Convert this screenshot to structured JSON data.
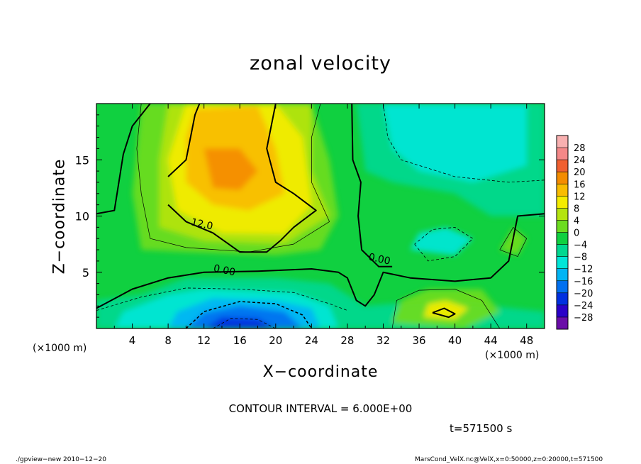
{
  "chart_data": {
    "type": "heatmap",
    "title": "zonal velocity",
    "xlabel": "X−coordinate",
    "ylabel": "Z−coordinate",
    "x_unit_left": "(×1000 m)",
    "x_unit_right": "(×1000 m)",
    "xlim": [
      0,
      50
    ],
    "ylim": [
      0,
      20
    ],
    "x_ticks": [
      4,
      8,
      12,
      16,
      20,
      24,
      28,
      32,
      36,
      40,
      44,
      48
    ],
    "y_ticks": [
      5,
      10,
      15
    ],
    "contour_interval_text": "CONTOUR INTERVAL = 6.000E+00",
    "time_text": "t=571500 s",
    "contour_labels": [
      {
        "text": "12.0",
        "x": 10.5,
        "y": 9.2
      },
      {
        "text": "0.00",
        "x": 13.0,
        "y": 5.1
      },
      {
        "text": "0.00",
        "x": 30.3,
        "y": 6.1
      }
    ],
    "colorbar": {
      "levels": [
        -28,
        -24,
        -20,
        -16,
        -12,
        -8,
        -4,
        0,
        4,
        8,
        12,
        16,
        20,
        24,
        28
      ],
      "labels": [
        "28",
        "24",
        "20",
        "16",
        "12",
        "8",
        "4",
        "0",
        "−4",
        "−8",
        "−12",
        "−16",
        "−20",
        "−24",
        "−28"
      ],
      "colors": [
        "#6a0da8",
        "#2a00c8",
        "#0030e0",
        "#0070f0",
        "#00b4f4",
        "#00e6d8",
        "#00d890",
        "#10d040",
        "#6cdc20",
        "#b4e410",
        "#f4ec00",
        "#f8bc00",
        "#f48c00",
        "#f06030",
        "#f48888",
        "#f8b0b0"
      ]
    },
    "features": [
      {
        "name": "positive core upper-left",
        "x": 15,
        "y": 13.5,
        "value": 20
      },
      {
        "name": "negative core lower",
        "x": 16,
        "y": 0.8,
        "value": -18
      },
      {
        "name": "negative region upper-right",
        "x": 38,
        "y": 17,
        "value": -6
      },
      {
        "name": "negative patch right",
        "x": 38,
        "y": 7.5,
        "value": -8
      },
      {
        "name": "positive patch lower-right",
        "x": 39,
        "y": 1.5,
        "value": 10
      }
    ]
  },
  "footer": {
    "left": "./gpview−new  2010−12−20",
    "right": "MarsCond_VelX.nc@VelX,x=0:50000,z=0:20000,t=571500"
  }
}
